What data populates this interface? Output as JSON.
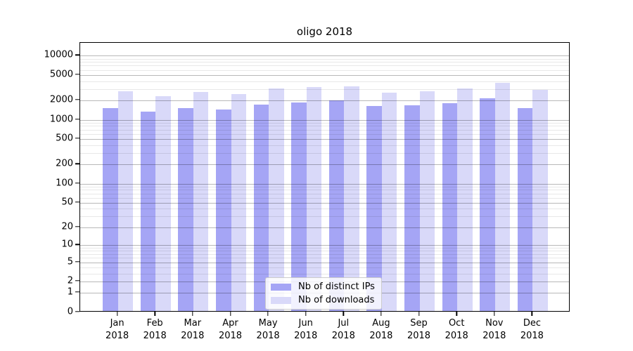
{
  "chart_data": {
    "type": "bar",
    "title": "oligo 2018",
    "categories": [
      "Jan",
      "Feb",
      "Mar",
      "Apr",
      "May",
      "Jun",
      "Jul",
      "Aug",
      "Sep",
      "Oct",
      "Nov",
      "Dec"
    ],
    "x_year_sublabel": "2018",
    "series": [
      {
        "name": "Nb of distinct IPs",
        "color": "#a5a5f5",
        "values": [
          1450,
          1300,
          1450,
          1400,
          1650,
          1800,
          1950,
          1580,
          1640,
          1750,
          2100,
          1450
        ]
      },
      {
        "name": "Nb of downloads",
        "color": "#d9d9f9",
        "values": [
          2700,
          2250,
          2600,
          2450,
          3000,
          3150,
          3200,
          2550,
          2700,
          2950,
          3600,
          2830
        ]
      }
    ],
    "y_ticks": [
      0,
      1,
      2,
      5,
      10,
      20,
      50,
      100,
      200,
      500,
      1000,
      2000,
      5000,
      10000
    ],
    "y_minor_ticks": [
      3,
      4,
      6,
      7,
      8,
      9,
      30,
      40,
      60,
      70,
      80,
      90,
      300,
      400,
      600,
      700,
      800,
      900,
      3000,
      4000,
      6000,
      7000,
      8000,
      9000
    ],
    "y_scale": "log1p",
    "ylim": [
      0,
      15900
    ],
    "grid": true,
    "legend_position": "lower center",
    "colors": {
      "grid_major": "#b8b8b8",
      "grid_minor": "#e8e8e8",
      "axis": "#000000",
      "background": "#ffffff"
    }
  }
}
